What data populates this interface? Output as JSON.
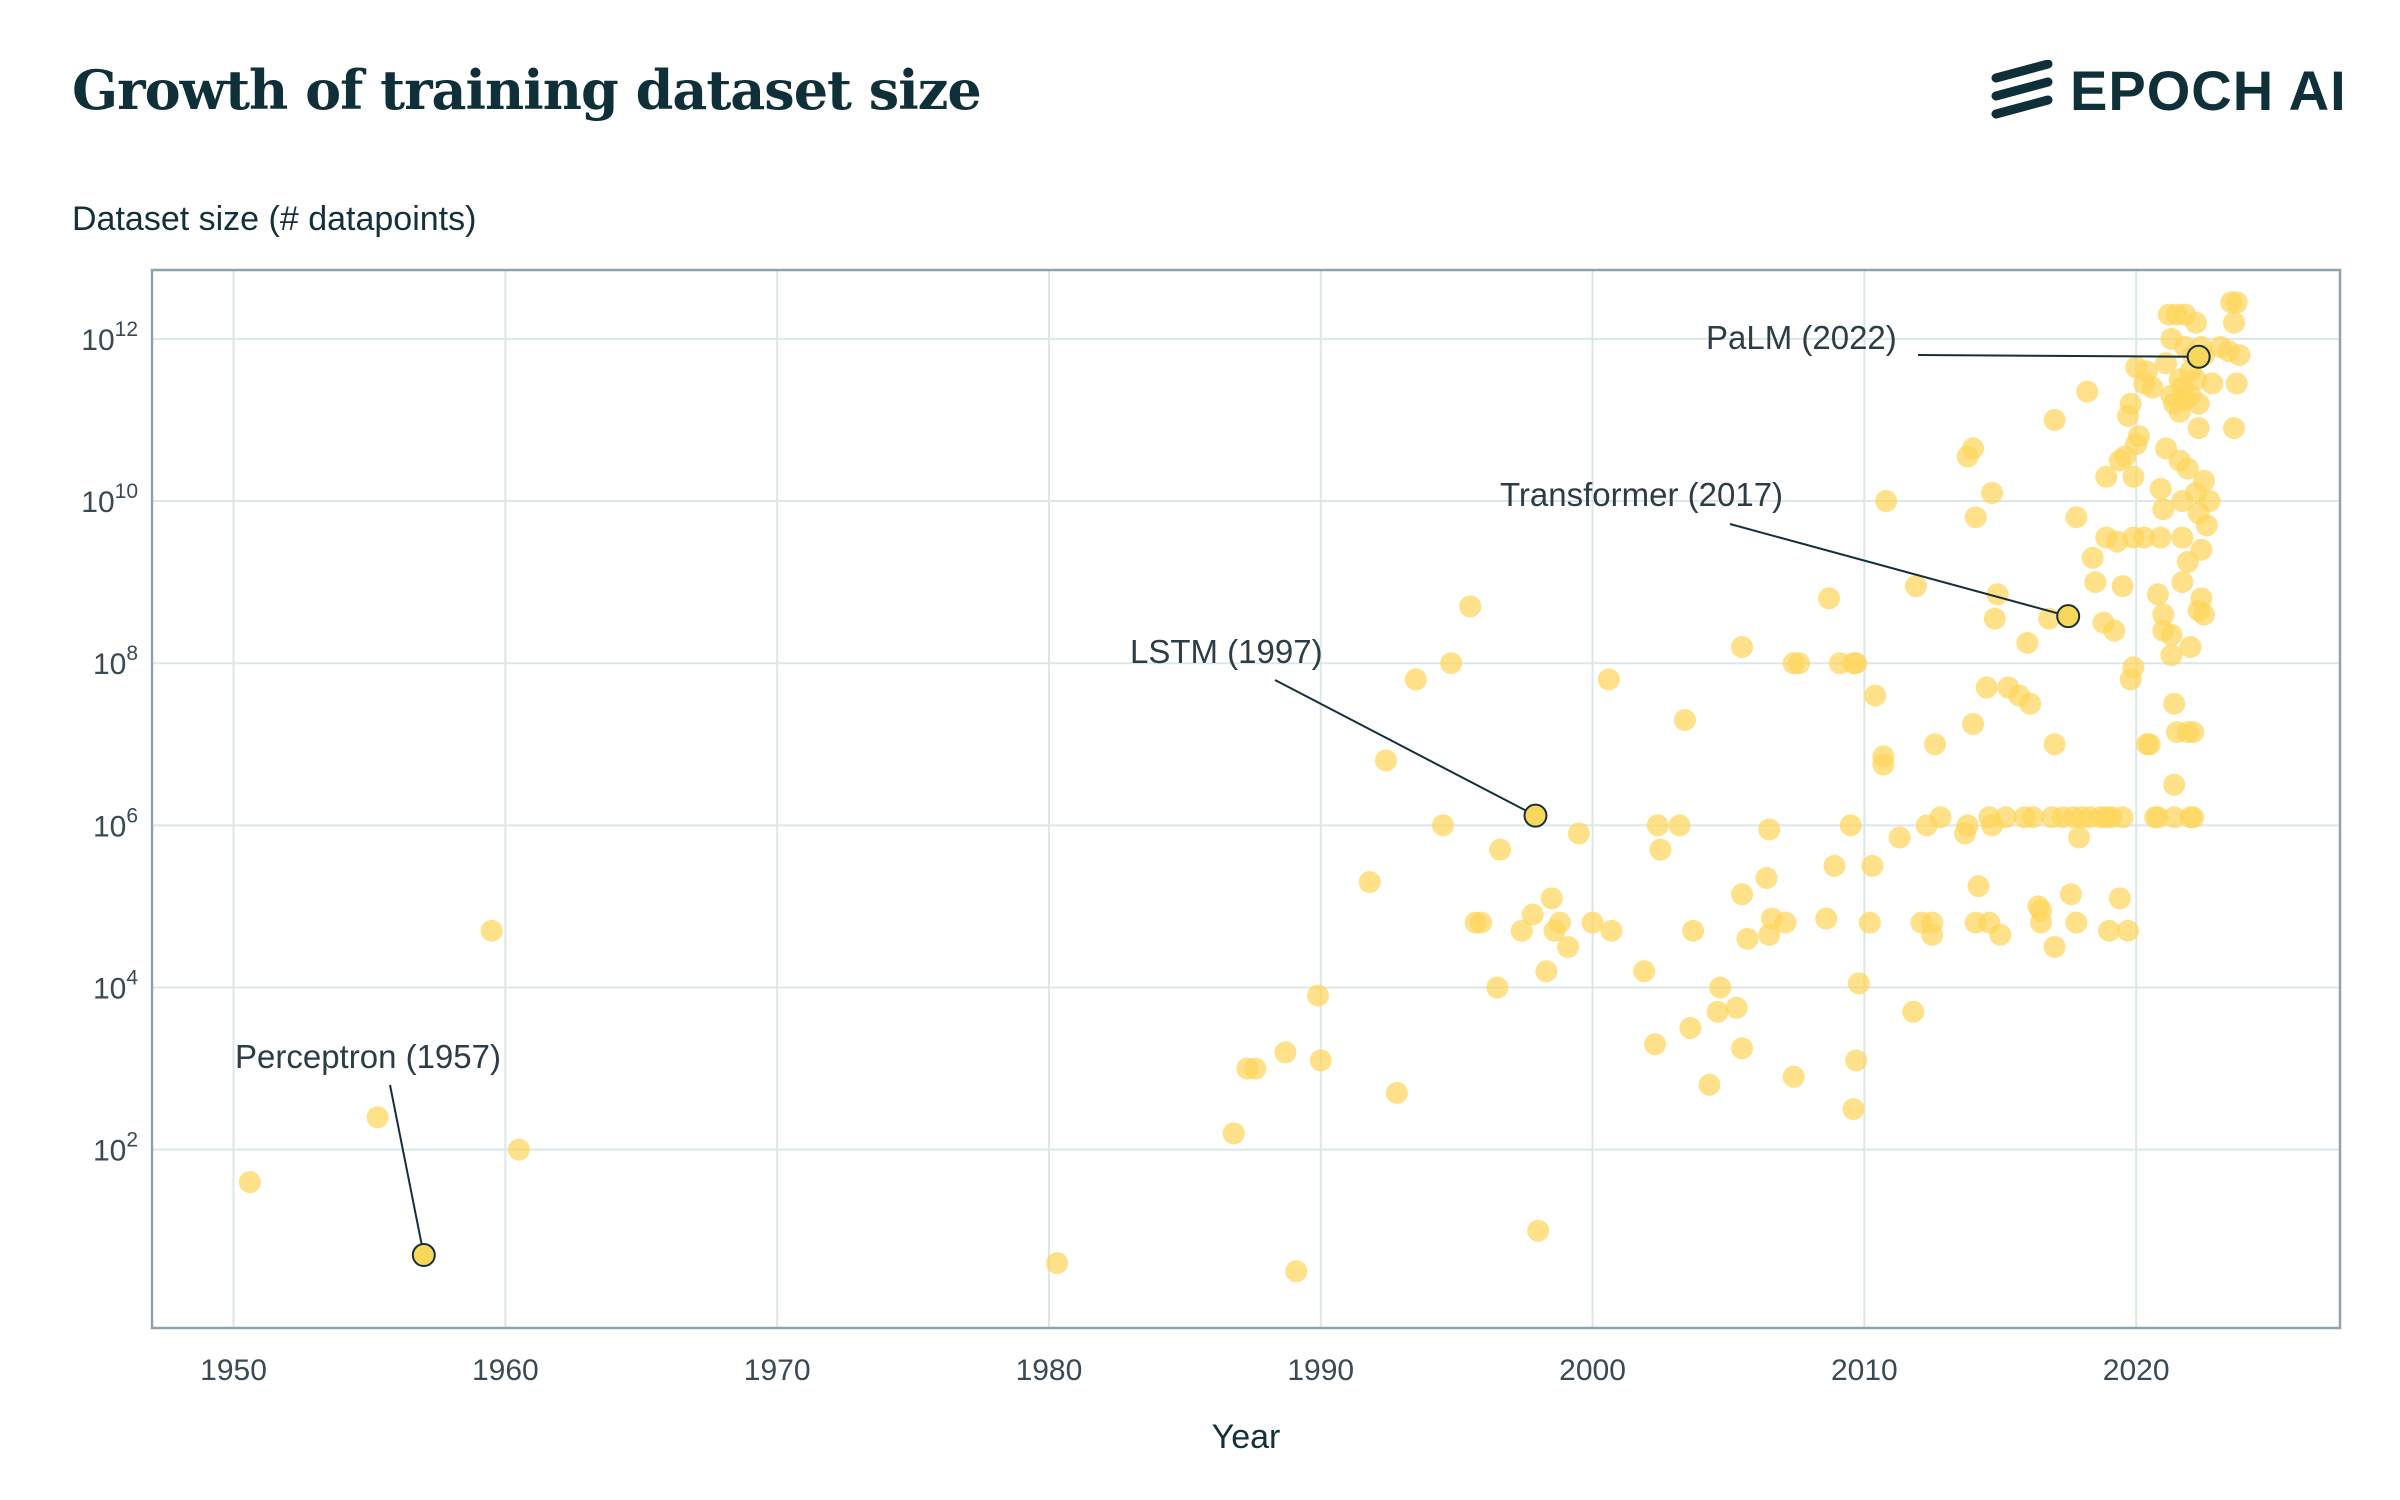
{
  "header": {
    "title": "Growth of training dataset size",
    "brand": "EPOCH AI"
  },
  "colors": {
    "point": "#fdd55a",
    "highlight": "#f8d75a",
    "grid": "#dbe8e6",
    "frame": "#8fa3ab",
    "text": "#14303a"
  },
  "chart_data": {
    "type": "scatter",
    "title": "Growth of training dataset size",
    "xlabel": "Year",
    "ylabel": "Dataset size (# datapoints)",
    "y_scale": "log",
    "xlim": [
      1947,
      2027.5
    ],
    "ylim_log10": [
      -0.2,
      12.85
    ],
    "grid": true,
    "x_ticks": [
      1950,
      1960,
      1970,
      1980,
      1990,
      2000,
      2010,
      2020
    ],
    "y_ticks": [
      {
        "exp": 2,
        "base": "10",
        "sup": "2"
      },
      {
        "exp": 4,
        "base": "10",
        "sup": "4"
      },
      {
        "exp": 6,
        "base": "10",
        "sup": "6"
      },
      {
        "exp": 8,
        "base": "10",
        "sup": "8"
      },
      {
        "exp": 10,
        "base": "10",
        "sup": "10"
      },
      {
        "exp": 12,
        "base": "10",
        "sup": "12"
      }
    ],
    "points": [
      [
        1950.6,
        1.6
      ],
      [
        1955.3,
        2.4
      ],
      [
        1959.5,
        4.7
      ],
      [
        1960.5,
        2.0
      ],
      [
        1980.3,
        0.6
      ],
      [
        1986.8,
        2.2
      ],
      [
        1987.3,
        3.0
      ],
      [
        1987.6,
        3.0
      ],
      [
        1988.7,
        3.2
      ],
      [
        1989.1,
        0.5
      ],
      [
        1989.9,
        3.9
      ],
      [
        1990,
        3.1
      ],
      [
        1991.8,
        5.3
      ],
      [
        1992.4,
        6.8
      ],
      [
        1992.8,
        2.7
      ],
      [
        1993.5,
        7.8
      ],
      [
        1994.5,
        6.0
      ],
      [
        1994.8,
        8.0
      ],
      [
        1995.5,
        8.7
      ],
      [
        1995.7,
        4.8
      ],
      [
        1995.9,
        4.8
      ],
      [
        1996.5,
        4.0
      ],
      [
        1996.6,
        5.7
      ],
      [
        1997.4,
        4.7
      ],
      [
        1997.8,
        4.9
      ],
      [
        1998.0,
        1.0
      ],
      [
        1998.3,
        4.2
      ],
      [
        1998.5,
        5.1
      ],
      [
        1998.6,
        4.7
      ],
      [
        1998.8,
        4.8
      ],
      [
        1999.1,
        4.5
      ],
      [
        1999.5,
        5.9
      ],
      [
        2000.0,
        4.8
      ],
      [
        2000.6,
        7.8
      ],
      [
        2000.7,
        4.7
      ],
      [
        2001.9,
        4.2
      ],
      [
        2002.3,
        3.3
      ],
      [
        2002.4,
        6.0
      ],
      [
        2002.5,
        5.7
      ],
      [
        2003.2,
        6.0
      ],
      [
        2003.4,
        7.3
      ],
      [
        2003.6,
        3.5
      ],
      [
        2003.7,
        4.7
      ],
      [
        2004.3,
        2.8
      ],
      [
        2004.6,
        3.7
      ],
      [
        2004.7,
        4.0
      ],
      [
        2005.3,
        3.75
      ],
      [
        2005.5,
        3.25
      ],
      [
        2005.5,
        5.15
      ],
      [
        2005.5,
        8.2
      ],
      [
        2005.7,
        4.6
      ],
      [
        2006.4,
        5.35
      ],
      [
        2006.5,
        5.95
      ],
      [
        2006.5,
        4.65
      ],
      [
        2006.6,
        4.85
      ],
      [
        2007.1,
        4.8
      ],
      [
        2007.4,
        2.9
      ],
      [
        2007.4,
        8.0
      ],
      [
        2007.6,
        8.0
      ],
      [
        2008.6,
        4.85
      ],
      [
        2008.7,
        8.8
      ],
      [
        2008.9,
        5.5
      ],
      [
        2009.1,
        8.0
      ],
      [
        2009.5,
        6.0
      ],
      [
        2009.6,
        8.0
      ],
      [
        2009.7,
        8.0
      ],
      [
        2009.6,
        2.5
      ],
      [
        2009.7,
        3.1
      ],
      [
        2009.8,
        4.05
      ],
      [
        2010.2,
        4.8
      ],
      [
        2010.3,
        5.5
      ],
      [
        2010.4,
        7.6
      ],
      [
        2010.7,
        6.85
      ],
      [
        2010.7,
        6.75
      ],
      [
        2010.8,
        10.0
      ],
      [
        2011.3,
        5.85
      ],
      [
        2011.8,
        3.7
      ],
      [
        2011.9,
        8.95
      ],
      [
        2012.1,
        4.8
      ],
      [
        2012.3,
        6.0
      ],
      [
        2012.5,
        4.8
      ],
      [
        2012.5,
        4.65
      ],
      [
        2012.6,
        7.0
      ],
      [
        2012.8,
        6.1
      ],
      [
        2013.7,
        5.9
      ],
      [
        2013.8,
        6.0
      ],
      [
        2013.8,
        10.55
      ],
      [
        2014.0,
        7.25
      ],
      [
        2014.0,
        10.65
      ],
      [
        2014.1,
        9.8
      ],
      [
        2014.1,
        4.8
      ],
      [
        2014.2,
        5.25
      ],
      [
        2014.5,
        7.7
      ],
      [
        2014.6,
        6.1
      ],
      [
        2014.6,
        4.8
      ],
      [
        2014.7,
        6.0
      ],
      [
        2014.7,
        10.1
      ],
      [
        2014.8,
        8.55
      ],
      [
        2014.9,
        8.85
      ],
      [
        2015.0,
        4.65
      ],
      [
        2015.2,
        6.1
      ],
      [
        2015.3,
        7.7
      ],
      [
        2015.7,
        7.6
      ],
      [
        2015.9,
        6.1
      ],
      [
        2016.0,
        8.25
      ],
      [
        2016.1,
        7.5
      ],
      [
        2016.2,
        6.1
      ],
      [
        2016.4,
        5.0
      ],
      [
        2016.5,
        4.8
      ],
      [
        2016.5,
        4.95
      ],
      [
        2016.8,
        8.55
      ],
      [
        2016.9,
        6.1
      ],
      [
        2017.0,
        4.5
      ],
      [
        2017.0,
        7.0
      ],
      [
        2017.0,
        11.0
      ],
      [
        2017.3,
        6.1
      ],
      [
        2017.6,
        5.15
      ],
      [
        2017.7,
        6.1
      ],
      [
        2017.8,
        4.8
      ],
      [
        2017.8,
        9.8
      ],
      [
        2017.9,
        5.85
      ],
      [
        2018.0,
        6.1
      ],
      [
        2018.2,
        11.35
      ],
      [
        2018.3,
        6.1
      ],
      [
        2018.4,
        9.3
      ],
      [
        2018.5,
        9.0
      ],
      [
        2018.7,
        6.1
      ],
      [
        2018.8,
        8.5
      ],
      [
        2018.9,
        9.55
      ],
      [
        2018.9,
        6.1
      ],
      [
        2018.9,
        10.3
      ],
      [
        2019.0,
        4.7
      ],
      [
        2019.1,
        6.1
      ],
      [
        2019.2,
        8.4
      ],
      [
        2019.3,
        9.5
      ],
      [
        2019.4,
        10.5
      ],
      [
        2019.5,
        8.95
      ],
      [
        2019.4,
        5.1
      ],
      [
        2019.5,
        6.1
      ],
      [
        2019.6,
        10.55
      ],
      [
        2019.7,
        4.7
      ],
      [
        2019.7,
        11.05
      ],
      [
        2019.8,
        11.2
      ],
      [
        2019.8,
        7.8
      ],
      [
        2019.9,
        7.95
      ],
      [
        2019.9,
        9.55
      ],
      [
        2019.9,
        10.3
      ],
      [
        2020.0,
        10.7
      ],
      [
        2020.0,
        11.65
      ],
      [
        2020.1,
        10.8
      ],
      [
        2020.3,
        9.55
      ],
      [
        2020.3,
        11.45
      ],
      [
        2020.4,
        11.6
      ],
      [
        2020.4,
        7.0
      ],
      [
        2020.5,
        7.0
      ],
      [
        2020.6,
        11.4
      ],
      [
        2020.7,
        6.1
      ],
      [
        2020.8,
        6.1
      ],
      [
        2020.8,
        8.85
      ],
      [
        2020.9,
        9.55
      ],
      [
        2020.9,
        10.15
      ],
      [
        2021.0,
        8.6
      ],
      [
        2021.0,
        8.4
      ],
      [
        2021.0,
        9.9
      ],
      [
        2021.1,
        11.7
      ],
      [
        2021.1,
        10.65
      ],
      [
        2021.2,
        12.3
      ],
      [
        2021.3,
        12.0
      ],
      [
        2021.3,
        11.3
      ],
      [
        2021.3,
        8.1
      ],
      [
        2021.3,
        8.35
      ],
      [
        2021.4,
        6.1
      ],
      [
        2021.4,
        7.5
      ],
      [
        2021.4,
        6.5
      ],
      [
        2021.4,
        11.2
      ],
      [
        2021.5,
        12.3
      ],
      [
        2021.5,
        7.15
      ],
      [
        2021.6,
        11.5
      ],
      [
        2021.6,
        11.1
      ],
      [
        2021.6,
        10.5
      ],
      [
        2021.7,
        11.4
      ],
      [
        2021.7,
        9.55
      ],
      [
        2021.7,
        9.0
      ],
      [
        2021.7,
        10.0
      ],
      [
        2021.8,
        11.9
      ],
      [
        2021.8,
        12.3
      ],
      [
        2021.8,
        11.25
      ],
      [
        2021.9,
        7.15
      ],
      [
        2021.9,
        10.4
      ],
      [
        2021.9,
        9.25
      ],
      [
        2022.0,
        11.6
      ],
      [
        2022.0,
        11.3
      ],
      [
        2022.0,
        8.2
      ],
      [
        2022.0,
        6.1
      ],
      [
        2022.1,
        11.8
      ],
      [
        2022.1,
        6.1
      ],
      [
        2022.1,
        7.15
      ],
      [
        2022.2,
        12.2
      ],
      [
        2022.2,
        11.5
      ],
      [
        2022.2,
        10.1
      ],
      [
        2022.3,
        9.85
      ],
      [
        2022.3,
        10.9
      ],
      [
        2022.3,
        11.2
      ],
      [
        2022.3,
        8.65
      ],
      [
        2022.4,
        11.9
      ],
      [
        2022.4,
        9.4
      ],
      [
        2022.4,
        8.8
      ],
      [
        2022.5,
        10.25
      ],
      [
        2022.5,
        8.6
      ],
      [
        2022.5,
        11.8
      ],
      [
        2022.6,
        9.7
      ],
      [
        2022.7,
        10.0
      ],
      [
        2022.8,
        11.45
      ],
      [
        2023.1,
        11.9
      ],
      [
        2023.4,
        11.85
      ],
      [
        2023.5,
        12.45
      ],
      [
        2023.6,
        12.2
      ],
      [
        2023.6,
        10.9
      ],
      [
        2023.7,
        11.45
      ],
      [
        2023.7,
        12.45
      ],
      [
        2023.8,
        11.8
      ]
    ],
    "annotations": [
      {
        "label": "Perceptron (1957)",
        "x": 1957.0,
        "y_log10": 0.7
      },
      {
        "label": "LSTM (1997)",
        "x": 1997.9,
        "y_log10": 6.12
      },
      {
        "label": "Transformer (2017)",
        "x": 2017.5,
        "y_log10": 8.58
      },
      {
        "label": "PaLM (2022)",
        "x": 2022.3,
        "y_log10": 11.78
      }
    ]
  }
}
